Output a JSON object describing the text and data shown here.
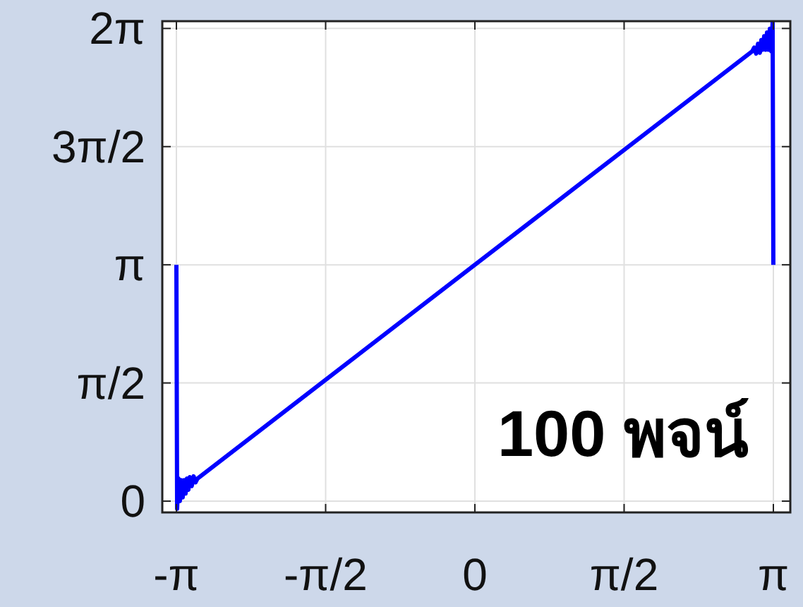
{
  "chart_data": {
    "type": "line",
    "color": "#0000ff",
    "grid": true,
    "annotations": [
      "100 พจน์"
    ],
    "xlim": [
      -3.29,
      3.32
    ],
    "ylim": [
      -0.15,
      6.38
    ],
    "xticks": [
      {
        "value": -3.1416,
        "label": "-π"
      },
      {
        "value": -1.5708,
        "label": "-π/2"
      },
      0,
      {
        "value": 1.5708,
        "label": "π/2"
      },
      {
        "value": 3.1416,
        "label": "π"
      }
    ],
    "yticks": [
      0,
      {
        "value": 1.5708,
        "label": "π/2"
      },
      {
        "value": 3.1416,
        "label": "π"
      },
      {
        "value": 4.7124,
        "label": "3π/2"
      },
      {
        "value": 6.2832,
        "label": "2π"
      }
    ],
    "x": [
      -3.1416,
      -3.134,
      -3.12,
      -3.105,
      -3.09,
      -3.075,
      -3.06,
      -3.045,
      -3.03,
      -3.015,
      -3.0,
      -2.98,
      -2.96,
      -2.94,
      -2.92,
      0,
      2.92,
      2.94,
      2.96,
      2.98,
      3.0,
      3.015,
      3.03,
      3.045,
      3.06,
      3.075,
      3.09,
      3.105,
      3.12,
      3.134,
      3.1416
    ],
    "values": [
      3.1416,
      -0.1,
      0.3,
      0.0,
      0.28,
      0.05,
      0.28,
      0.1,
      0.3,
      0.15,
      0.32,
      0.2,
      0.33,
      0.25,
      0.3,
      3.1416,
      5.98,
      6.03,
      5.95,
      6.08,
      5.96,
      6.13,
      6.0,
      6.18,
      6.0,
      6.23,
      6.0,
      6.28,
      5.98,
      6.38,
      3.1416
    ]
  }
}
